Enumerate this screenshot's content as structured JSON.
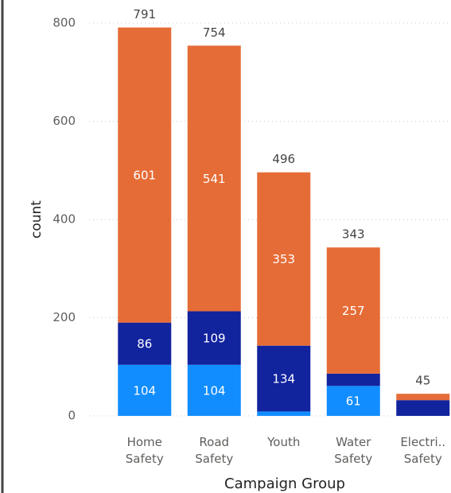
{
  "chart_data": {
    "type": "stacked_bar",
    "x_label": "Campaign Group",
    "y_label": "count",
    "categories": [
      "Home Safety",
      "Road Safety",
      "Youth",
      "Water Safety",
      "Electri.. Safety"
    ],
    "series": [
      {
        "color": "#118dff",
        "values": [
          104,
          104,
          9,
          61,
          0
        ],
        "value_labels": [
          "104",
          "104",
          null,
          "61",
          null
        ]
      },
      {
        "color": "#12239e",
        "values": [
          86,
          109,
          134,
          25,
          32
        ],
        "value_labels": [
          "86",
          "109",
          "134",
          null,
          null
        ]
      },
      {
        "color": "#e66c37",
        "values": [
          601,
          541,
          353,
          257,
          13
        ],
        "value_labels": [
          "601",
          "541",
          "353",
          "257",
          null
        ]
      }
    ],
    "totals": [
      791,
      754,
      496,
      343,
      45
    ],
    "ylim": [
      0,
      800
    ],
    "yticks": [
      0,
      200,
      400,
      600,
      800
    ],
    "grid": true
  }
}
